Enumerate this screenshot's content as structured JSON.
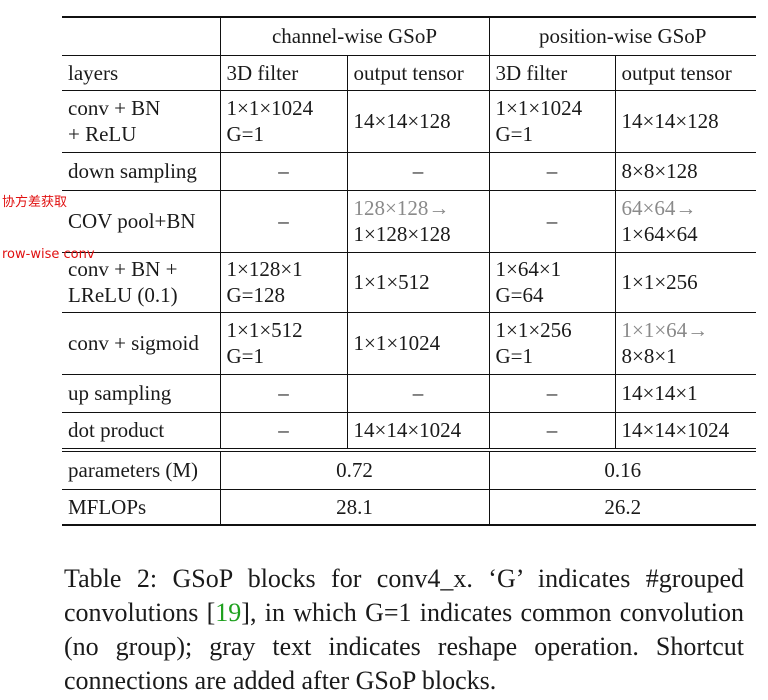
{
  "table": {
    "group_headers": [
      "",
      "channel-wise GSoP",
      "position-wise GSoP"
    ],
    "sub_headers": [
      "layers",
      "3D filter",
      "output tensor",
      "3D filter",
      "output tensor"
    ],
    "rows": [
      {
        "height": 62,
        "cells": [
          {
            "lines": [
              "conv + BN",
              "+ ReLU"
            ],
            "gray": false
          },
          {
            "lines": [
              "1×1×1024",
              "G=1"
            ],
            "gray": false
          },
          {
            "lines": [
              "14×14×128"
            ],
            "gray": false
          },
          {
            "lines": [
              "1×1×1024",
              "G=1"
            ],
            "gray": false
          },
          {
            "lines": [
              "14×14×128"
            ],
            "gray": false
          }
        ]
      },
      {
        "height": 38,
        "cells": [
          {
            "lines": [
              "down sampling"
            ],
            "gray": false
          },
          {
            "lines": [
              "–"
            ],
            "gray": false
          },
          {
            "lines": [
              "–"
            ],
            "gray": false
          },
          {
            "lines": [
              "–"
            ],
            "gray": false
          },
          {
            "lines": [
              "8×8×128"
            ],
            "gray": false
          }
        ]
      },
      {
        "height": 62,
        "cells": [
          {
            "lines": [
              "COV pool+BN"
            ],
            "gray": false
          },
          {
            "lines": [
              "–"
            ],
            "gray": false
          },
          {
            "lines": [
              "128×128→",
              "1×128×128"
            ],
            "gray": [
              true,
              false
            ]
          },
          {
            "lines": [
              "–"
            ],
            "gray": false
          },
          {
            "lines": [
              "64×64→",
              "1×64×64"
            ],
            "gray": [
              true,
              false
            ]
          }
        ]
      },
      {
        "height": 60,
        "cells": [
          {
            "lines": [
              "conv + BN +",
              "LReLU (0.1)"
            ],
            "gray": false
          },
          {
            "lines": [
              "1×128×1",
              "G=128"
            ],
            "gray": false
          },
          {
            "lines": [
              "1×1×512"
            ],
            "gray": false
          },
          {
            "lines": [
              "1×64×1",
              "G=64"
            ],
            "gray": false
          },
          {
            "lines": [
              "1×1×256"
            ],
            "gray": false
          }
        ]
      },
      {
        "height": 62,
        "cells": [
          {
            "lines": [
              "conv + sigmoid"
            ],
            "gray": false
          },
          {
            "lines": [
              "1×1×512",
              "G=1"
            ],
            "gray": false
          },
          {
            "lines": [
              "1×1×1024"
            ],
            "gray": false
          },
          {
            "lines": [
              "1×1×256",
              "G=1"
            ],
            "gray": false
          },
          {
            "lines": [
              "1×1×64→",
              "8×8×1"
            ],
            "gray": [
              true,
              false
            ]
          }
        ]
      },
      {
        "height": 38,
        "cells": [
          {
            "lines": [
              "up sampling"
            ],
            "gray": false
          },
          {
            "lines": [
              "–"
            ],
            "gray": false
          },
          {
            "lines": [
              "–"
            ],
            "gray": false
          },
          {
            "lines": [
              "–"
            ],
            "gray": false
          },
          {
            "lines": [
              "14×14×1"
            ],
            "gray": false
          }
        ]
      },
      {
        "height": 38,
        "cells": [
          {
            "lines": [
              "dot product"
            ],
            "gray": false
          },
          {
            "lines": [
              "–"
            ],
            "gray": false
          },
          {
            "lines": [
              "14×14×1024"
            ],
            "gray": false
          },
          {
            "lines": [
              "–"
            ],
            "gray": false
          },
          {
            "lines": [
              "14×14×1024"
            ],
            "gray": false
          }
        ]
      }
    ],
    "summary": [
      {
        "label": "parameters (M)",
        "channel": "0.72",
        "position": "0.16"
      },
      {
        "label": "MFLOPs",
        "channel": "28.1",
        "position": "26.2"
      }
    ]
  },
  "annotations": {
    "note1": "协方差获取",
    "note2": "row-wise conv"
  },
  "caption": {
    "before_ref": "Table 2: GSoP blocks for conv4_x. ‘G’ indicates #grouped convolutions [",
    "ref": "19",
    "after_ref": "], in which G=1 indicates common convolution (no group); gray text indicates reshape operation. Shortcut connections are added after GSoP blocks."
  },
  "colors": {
    "reshape_gray": "#8a8a8a",
    "annotation_red": "#e01010",
    "citation_green": "#1ea01e"
  }
}
